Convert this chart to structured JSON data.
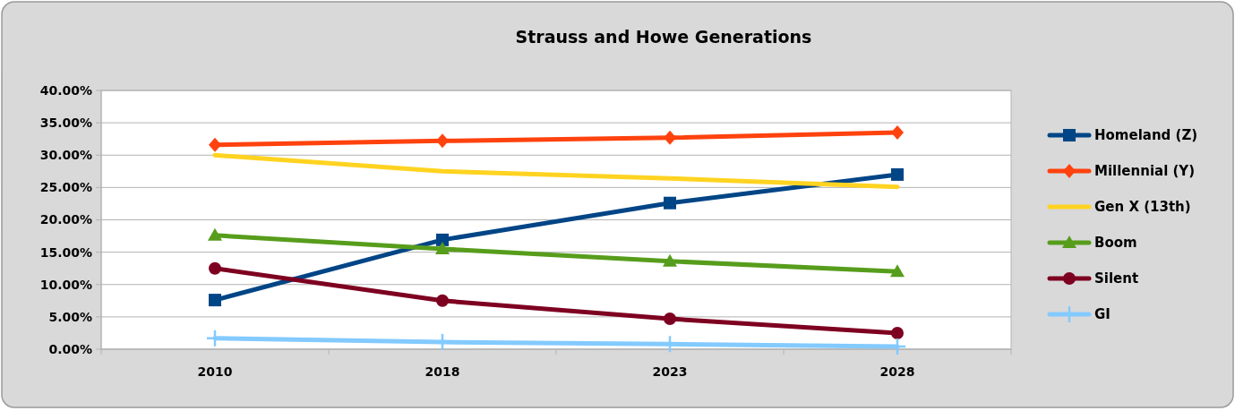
{
  "chart_data": {
    "type": "line",
    "title": "Strauss and Howe Generations",
    "categories": [
      "2010",
      "2018",
      "2023",
      "2028"
    ],
    "ylim": [
      0,
      0.4
    ],
    "yticks": [
      {
        "value": 0,
        "label": "0.00%"
      },
      {
        "value": 0.05,
        "label": "5.00%"
      },
      {
        "value": 0.1,
        "label": "10.00%"
      },
      {
        "value": 0.15,
        "label": "15.00%"
      },
      {
        "value": 0.2,
        "label": "20.00%"
      },
      {
        "value": 0.25,
        "label": "25.00%"
      },
      {
        "value": 0.3,
        "label": "30.00%"
      },
      {
        "value": 0.35,
        "label": "35.00%"
      },
      {
        "value": 0.4,
        "label": "40.00%"
      }
    ],
    "grid": "y",
    "legend": "right",
    "line_style": "solid",
    "series": [
      {
        "name": "Homeland (Z)",
        "color": "#004586",
        "marker": "square",
        "values": [
          0.076,
          0.169,
          0.226,
          0.27
        ]
      },
      {
        "name": "Millennial (Y)",
        "color": "#ff420e",
        "marker": "diamond",
        "values": [
          0.316,
          0.322,
          0.327,
          0.335
        ]
      },
      {
        "name": "Gen X (13th)",
        "color": "#ffd320",
        "marker": "none",
        "values": [
          0.3,
          0.275,
          0.264,
          0.251
        ]
      },
      {
        "name": "Boom",
        "color": "#579d1c",
        "marker": "triangle",
        "values": [
          0.176,
          0.155,
          0.136,
          0.12
        ]
      },
      {
        "name": "Silent",
        "color": "#7e0021",
        "marker": "circle",
        "values": [
          0.125,
          0.075,
          0.047,
          0.025
        ]
      },
      {
        "name": "GI",
        "color": "#83caff",
        "marker": "cross",
        "values": [
          0.017,
          0.011,
          0.008,
          0.004
        ]
      }
    ]
  }
}
